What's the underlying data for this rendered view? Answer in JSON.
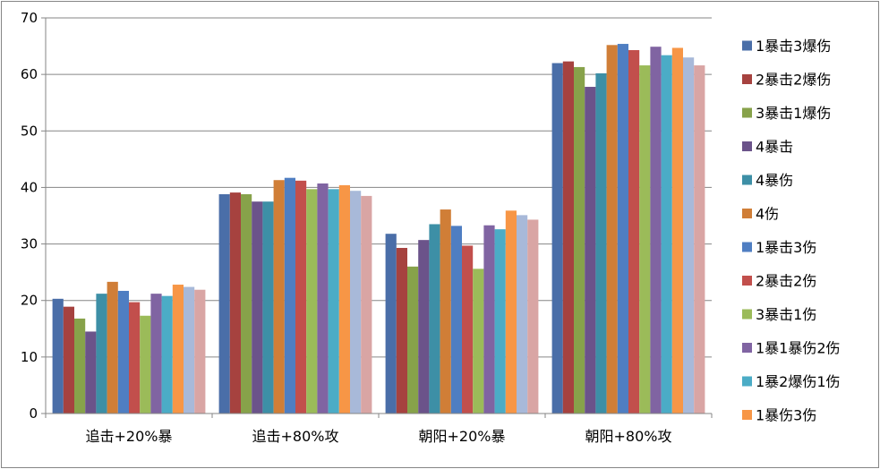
{
  "chart_data": {
    "type": "bar",
    "title": "",
    "xlabel": "",
    "ylabel": "",
    "ylim": [
      0,
      70
    ],
    "yticks": [
      "0",
      "10",
      "20",
      "30",
      "40",
      "50",
      "60",
      "70"
    ],
    "grid": true,
    "legend_position": "right",
    "categories": [
      "追击+20%暴",
      "追击+80%攻",
      "朝阳+20%暴",
      "朝阳+80%攻"
    ],
    "series": [
      {
        "name": "1暴击3爆伤",
        "color": "#4A6EA8",
        "values": [
          20.3,
          38.8,
          31.8,
          62.0
        ]
      },
      {
        "name": "2暴击2爆伤",
        "color": "#A6423F",
        "values": [
          18.9,
          39.1,
          29.3,
          62.3
        ]
      },
      {
        "name": "3暴击1爆伤",
        "color": "#87A24A",
        "values": [
          16.8,
          38.8,
          26.0,
          61.3
        ]
      },
      {
        "name": "4暴击",
        "color": "#6B538A",
        "values": [
          14.5,
          37.5,
          30.7,
          57.8
        ]
      },
      {
        "name": "4暴伤",
        "color": "#3D8FA6",
        "values": [
          21.2,
          37.5,
          33.5,
          60.2
        ]
      },
      {
        "name": "4伤",
        "color": "#D07E37",
        "values": [
          23.3,
          41.3,
          36.1,
          65.2
        ]
      },
      {
        "name": "1暴击3伤",
        "color": "#4F7EC2",
        "values": [
          21.7,
          41.7,
          33.2,
          65.4
        ]
      },
      {
        "name": "2暴击2伤",
        "color": "#C24F4C",
        "values": [
          19.7,
          41.2,
          29.7,
          64.3
        ]
      },
      {
        "name": "3暴击1伤",
        "color": "#9BBB59",
        "values": [
          17.3,
          39.7,
          25.6,
          61.6
        ]
      },
      {
        "name": "1暴1暴伤2伤",
        "color": "#8064A2",
        "values": [
          21.2,
          40.7,
          33.3,
          64.9
        ]
      },
      {
        "name": "1暴2爆伤1伤",
        "color": "#4BACC6",
        "values": [
          20.8,
          39.7,
          32.6,
          63.4
        ]
      },
      {
        "name": "1暴伤3伤",
        "color": "#F79646",
        "values": [
          22.8,
          40.4,
          35.9,
          64.7
        ]
      },
      {
        "name": "",
        "color": "#A8B9D9",
        "values": [
          22.4,
          39.4,
          35.1,
          63.0
        ]
      },
      {
        "name": "",
        "color": "#D9A5A4",
        "values": [
          21.9,
          38.5,
          34.3,
          61.6
        ]
      }
    ]
  }
}
